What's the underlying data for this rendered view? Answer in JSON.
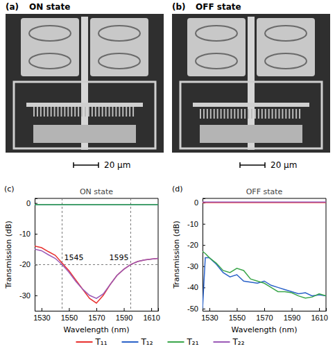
{
  "images": [
    {
      "label": "(a)",
      "title": "ON state",
      "scale_bar": "20 µm"
    },
    {
      "label": "(b)",
      "title": "OFF state",
      "scale_bar": "20 µm"
    }
  ],
  "chart_data": [
    {
      "type": "line",
      "panel_label": "(c)",
      "title": "ON state",
      "x_label": "Wavelength (nm)",
      "y_label": "Transmission (dB)",
      "xlim": [
        1525,
        1615
      ],
      "xticks": [
        1530,
        1550,
        1570,
        1590,
        1610
      ],
      "ylim": [
        -35,
        1.5
      ],
      "yticks": [
        0,
        -10,
        -20,
        -30
      ],
      "reference_lines": {
        "x": [
          1545,
          1595
        ],
        "y": [
          -20
        ]
      },
      "annotations": [
        {
          "text": "1545",
          "x": 1545,
          "y": -18.5
        },
        {
          "text": "1595",
          "x": 1595,
          "y": -18.5
        }
      ],
      "x": [
        1525,
        1530,
        1535,
        1540,
        1545,
        1550,
        1555,
        1560,
        1565,
        1570,
        1575,
        1580,
        1585,
        1590,
        1595,
        1600,
        1605,
        1610,
        1615
      ],
      "series": [
        {
          "name": "T₁₁",
          "color": "#e8312f",
          "values": [
            -14,
            -14.5,
            -15.8,
            -17,
            -19.5,
            -22,
            -25,
            -28,
            -31,
            -32.5,
            -30,
            -26.5,
            -23.5,
            -21.5,
            -20,
            -19,
            -18.5,
            -18.2,
            -18
          ]
        },
        {
          "name": "T₁₂",
          "color": "#2a62c8",
          "values": [
            -0.6,
            -0.6,
            -0.6,
            -0.6,
            -0.6,
            -0.6,
            -0.6,
            -0.6,
            -0.6,
            -0.6,
            -0.6,
            -0.6,
            -0.6,
            -0.6,
            -0.6,
            -0.6,
            -0.6,
            -0.6,
            -0.6
          ]
        },
        {
          "name": "T₂₁",
          "color": "#3aa64a",
          "values": [
            -0.5,
            -0.5,
            -0.5,
            -0.5,
            -0.5,
            -0.5,
            -0.5,
            -0.5,
            -0.5,
            -0.5,
            -0.5,
            -0.5,
            -0.5,
            -0.5,
            -0.5,
            -0.5,
            -0.5,
            -0.5,
            -0.5
          ]
        },
        {
          "name": "T₂₂",
          "color": "#9b59b6",
          "values": [
            -15,
            -15.5,
            -16.8,
            -18,
            -20,
            -22.5,
            -25.5,
            -28,
            -30,
            -31,
            -29.5,
            -26.5,
            -23.5,
            -21.5,
            -20,
            -19,
            -18.5,
            -18.2,
            -18
          ]
        }
      ]
    },
    {
      "type": "line",
      "panel_label": "(d)",
      "title": "OFF state",
      "x_label": "Wavelength (nm)",
      "y_label": "Transmission (dB)",
      "xlim": [
        1525,
        1615
      ],
      "xticks": [
        1530,
        1550,
        1570,
        1590,
        1610
      ],
      "ylim": [
        -51,
        2
      ],
      "yticks": [
        0,
        -10,
        -20,
        -30,
        -40,
        -50
      ],
      "x": [
        1525,
        1527,
        1530,
        1535,
        1540,
        1545,
        1550,
        1555,
        1560,
        1565,
        1570,
        1575,
        1580,
        1585,
        1590,
        1595,
        1600,
        1605,
        1610,
        1615
      ],
      "series": [
        {
          "color": "#e8312f",
          "values": [
            0,
            0,
            0,
            0,
            0,
            0,
            0,
            0,
            0,
            0,
            0,
            0,
            0,
            0,
            0,
            0,
            0,
            0,
            0,
            0
          ]
        },
        {
          "color": "#2a62c8",
          "values": [
            -50,
            -26,
            -26,
            -29,
            -33,
            -35,
            -34,
            -37,
            -37.5,
            -38,
            -37,
            -39,
            -40,
            -41,
            -42,
            -43,
            -42.5,
            -44,
            -43.5,
            -44
          ]
        },
        {
          "color": "#3aa64a",
          "values": [
            -23,
            -24,
            -26,
            -28.5,
            -32,
            -33,
            -31,
            -32,
            -36,
            -37,
            -38,
            -40,
            -42,
            -42,
            -42.5,
            -44,
            -45,
            -44.5,
            -43,
            -44
          ]
        },
        {
          "color": "#9b59b6",
          "values": [
            0.3,
            0.3,
            0.3,
            0.3,
            0.3,
            0.3,
            0.3,
            0.3,
            0.3,
            0.3,
            0.3,
            0.3,
            0.3,
            0.3,
            0.3,
            0.3,
            0.3,
            0.3,
            0.3,
            0.3
          ]
        }
      ]
    }
  ]
}
